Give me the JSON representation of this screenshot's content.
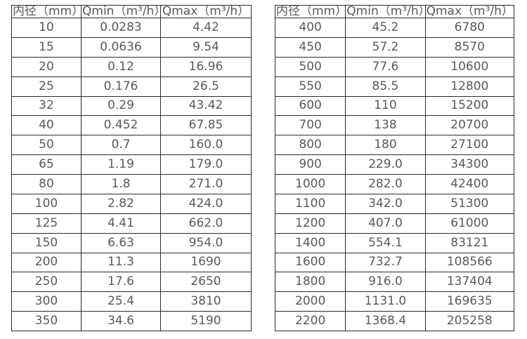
{
  "styles": {
    "border_color": "#2b2b2b",
    "text_color": "#595959",
    "background_color": "#ffffff"
  },
  "left_table": {
    "headers": [
      "内径（mm）",
      "Qmin（m³/h）",
      "Qmax（m³/h）"
    ],
    "rows": [
      [
        "10",
        "0.0283",
        "4.42"
      ],
      [
        "15",
        "0.0636",
        "9.54"
      ],
      [
        "20",
        "0.12",
        "16.96"
      ],
      [
        "25",
        "0.176",
        "26.5"
      ],
      [
        "32",
        "0.29",
        "43.42"
      ],
      [
        "40",
        "0.452",
        "67.85"
      ],
      [
        "50",
        "0.7",
        "160.0"
      ],
      [
        "65",
        "1.19",
        "179.0"
      ],
      [
        "80",
        "1.8",
        "271.0"
      ],
      [
        "100",
        "2.82",
        "424.0"
      ],
      [
        "125",
        "4.41",
        "662.0"
      ],
      [
        "150",
        "6.63",
        "954.0"
      ],
      [
        "200",
        "11.3",
        "1690"
      ],
      [
        "250",
        "17.6",
        "2650"
      ],
      [
        "300",
        "25.4",
        "3810"
      ],
      [
        "350",
        "34.6",
        "5190"
      ]
    ]
  },
  "right_table": {
    "headers": [
      "内径（mm）",
      "Qmin（m³/h）",
      "Qmax（m³/h）"
    ],
    "rows": [
      [
        "400",
        "45.2",
        "6780"
      ],
      [
        "450",
        "57.2",
        "8570"
      ],
      [
        "500",
        "77.6",
        "10600"
      ],
      [
        "550",
        "85.5",
        "12800"
      ],
      [
        "600",
        "110",
        "15200"
      ],
      [
        "700",
        "138",
        "20700"
      ],
      [
        "800",
        "180",
        "27100"
      ],
      [
        "900",
        "229.0",
        "34300"
      ],
      [
        "1000",
        "282.0",
        "42400"
      ],
      [
        "1100",
        "342.0",
        "51300"
      ],
      [
        "1200",
        "407.0",
        "61000"
      ],
      [
        "1400",
        "554.1",
        "83121"
      ],
      [
        "1600",
        "732.7",
        "108566"
      ],
      [
        "1800",
        "916.0",
        "137404"
      ],
      [
        "2000",
        "1131.0",
        "169635"
      ],
      [
        "2200",
        "1368.4",
        "205258"
      ]
    ]
  }
}
